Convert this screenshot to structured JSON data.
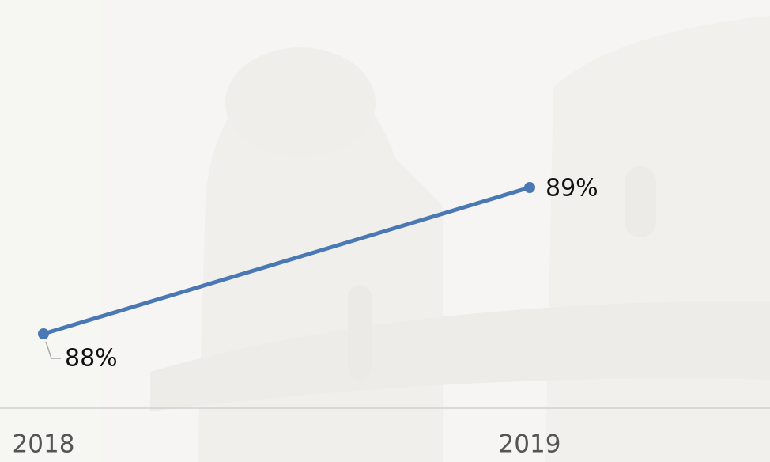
{
  "chart_data": {
    "type": "line",
    "categories": [
      "2018",
      "2019"
    ],
    "series": [
      {
        "color": "#4a78b5",
        "values": [
          88,
          89
        ],
        "value_labels": [
          "88%",
          "89%"
        ]
      }
    ]
  }
}
